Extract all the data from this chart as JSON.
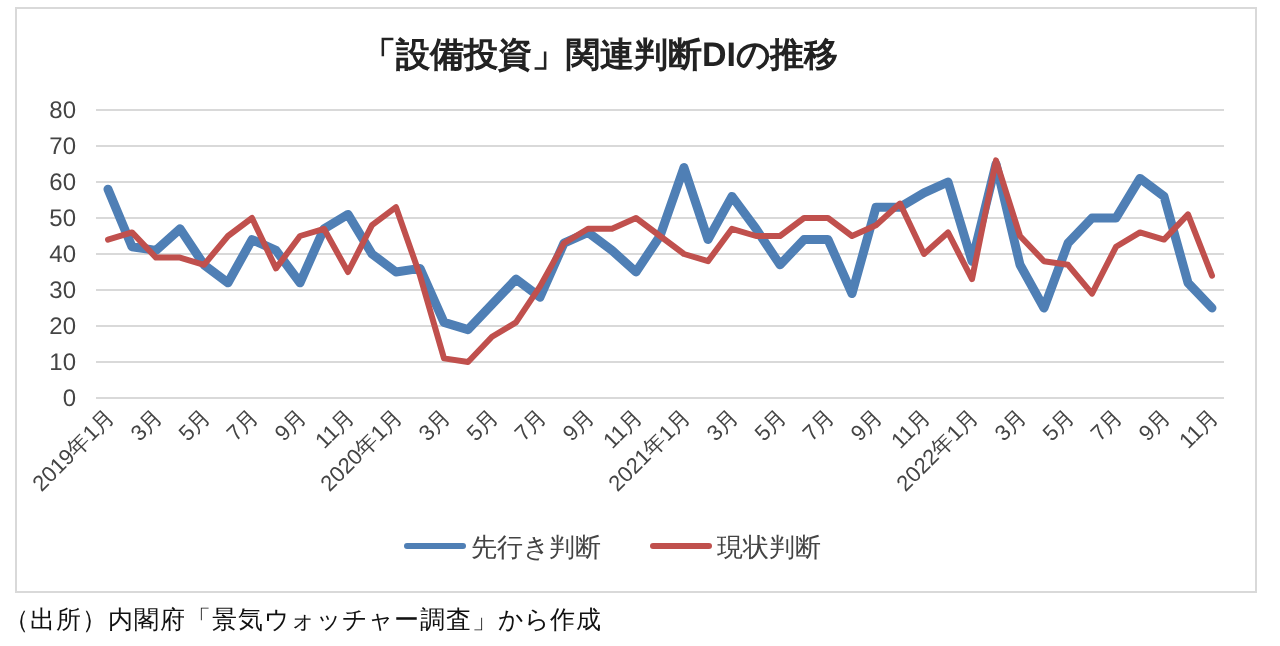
{
  "chart_data": {
    "type": "line",
    "title": "「設備投資」関連判断DIの推移",
    "categories": [
      "2019年1月",
      null,
      "3月",
      null,
      "5月",
      null,
      "7月",
      null,
      "9月",
      null,
      "11月",
      null,
      "2020年1月",
      null,
      "3月",
      null,
      "5月",
      null,
      "7月",
      null,
      "9月",
      null,
      "11月",
      null,
      "2021年1月",
      null,
      "3月",
      null,
      "5月",
      null,
      "7月",
      null,
      "9月",
      null,
      "11月",
      null,
      "2022年1月",
      null,
      "3月",
      null,
      "5月",
      null,
      "7月",
      null,
      "9月",
      null,
      "11月"
    ],
    "series": [
      {
        "name": "先行き判断",
        "color": "#4f7fb5",
        "values": [
          58,
          42,
          41,
          47,
          37,
          32,
          44,
          41,
          32,
          47,
          51,
          40,
          35,
          36,
          21,
          19,
          26,
          33,
          28,
          43,
          46,
          41,
          35,
          45,
          64,
          44,
          56,
          47,
          37,
          44,
          44,
          29,
          53,
          53,
          57,
          60,
          38,
          65,
          37,
          25,
          43,
          50,
          50,
          61,
          56,
          32,
          25
        ]
      },
      {
        "name": "現状判断",
        "color": "#c0504d",
        "values": [
          44,
          46,
          39,
          39,
          37,
          45,
          50,
          36,
          45,
          47,
          35,
          48,
          53,
          34,
          11,
          10,
          17,
          21,
          31,
          43,
          47,
          47,
          50,
          45,
          40,
          38,
          47,
          45,
          45,
          50,
          50,
          45,
          48,
          54,
          40,
          46,
          33,
          66,
          45,
          38,
          37,
          29,
          42,
          46,
          44,
          51,
          34
        ]
      }
    ],
    "ylim": [
      0,
      80
    ],
    "yticks": [
      0,
      10,
      20,
      30,
      40,
      50,
      60,
      70,
      80
    ],
    "grid": "y",
    "legend": "bottom",
    "annotations": [
      "（出所）内閣府「景気ウォッチャー調査」から作成"
    ]
  }
}
